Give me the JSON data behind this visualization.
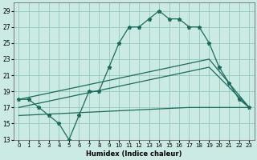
{
  "xlabel": "Humidex (Indice chaleur)",
  "xlim": [
    -0.5,
    23.5
  ],
  "ylim": [
    13,
    30
  ],
  "yticks": [
    13,
    15,
    17,
    19,
    21,
    23,
    25,
    27,
    29
  ],
  "xticks": [
    0,
    1,
    2,
    3,
    4,
    5,
    6,
    7,
    8,
    9,
    10,
    11,
    12,
    13,
    14,
    15,
    16,
    17,
    18,
    19,
    20,
    21,
    22,
    23
  ],
  "bg_color": "#cceae4",
  "grid_color": "#99ccc4",
  "line_color": "#1a6b5a",
  "main_curve_x": [
    0,
    1,
    2,
    3,
    4,
    5,
    6,
    7,
    8,
    9,
    10,
    11,
    12,
    13,
    14,
    15,
    16,
    17,
    18,
    19,
    20,
    21,
    22,
    23
  ],
  "main_curve_y": [
    18,
    18,
    17,
    16,
    15,
    13,
    16,
    19,
    19,
    22,
    25,
    27,
    27,
    28,
    29,
    28,
    28,
    27,
    27,
    25,
    22,
    20,
    18,
    17
  ],
  "line1_x": [
    0,
    19,
    23
  ],
  "line1_y": [
    18,
    23,
    17
  ],
  "line2_x": [
    0,
    19,
    23
  ],
  "line2_y": [
    17,
    22,
    17
  ],
  "line3_x": [
    0,
    17,
    23
  ],
  "line3_y": [
    16,
    17,
    17
  ]
}
